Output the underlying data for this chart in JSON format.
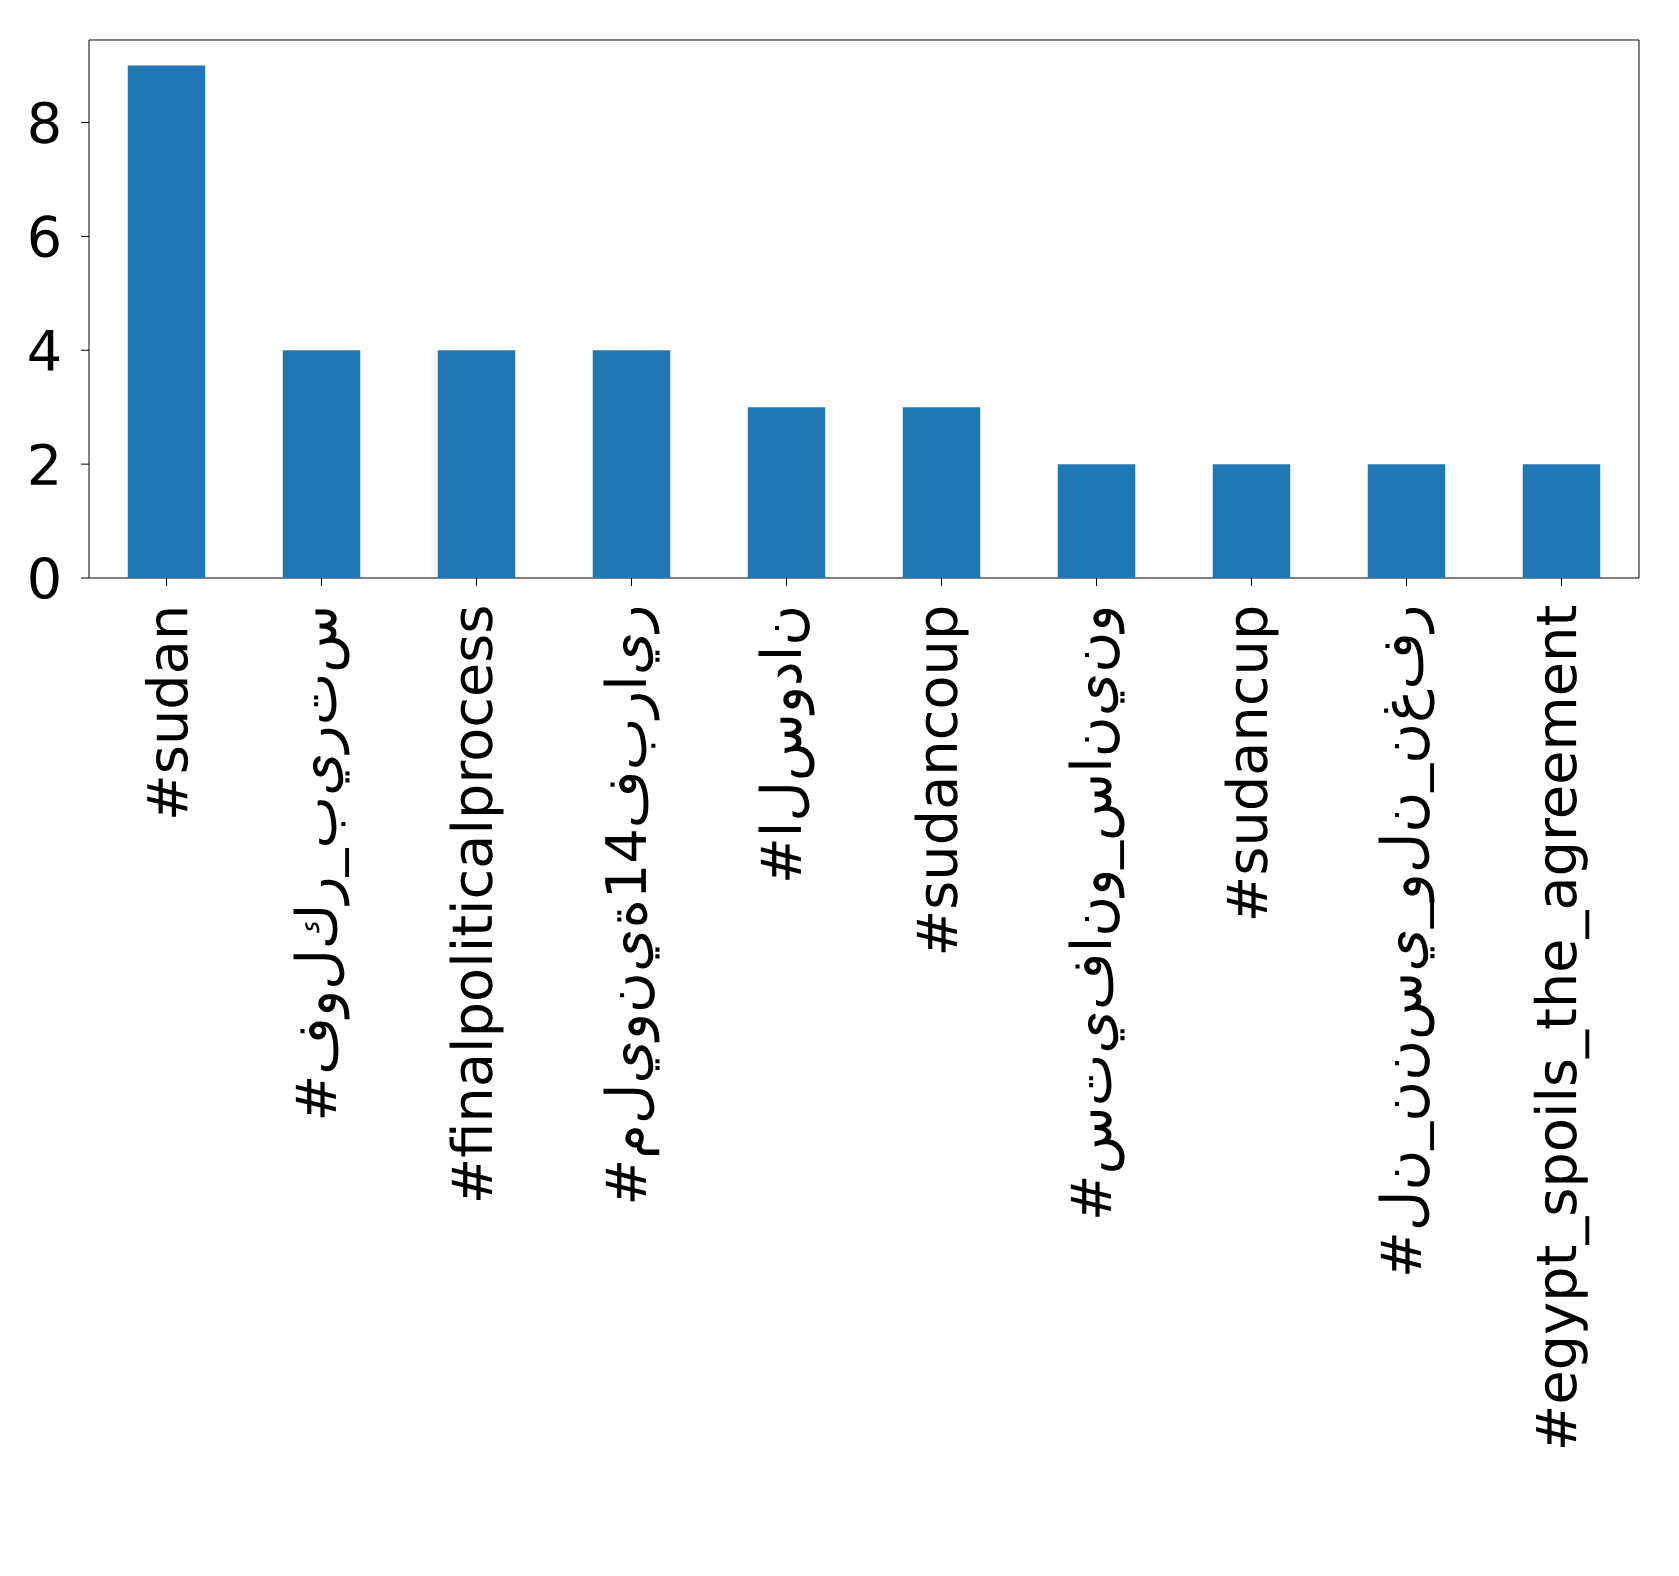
{
  "chart_data": {
    "type": "bar",
    "categories": [
      "#sudan",
      "#فولكر_بيرتس",
      "#finalpoliticalprocess",
      "#مليونية14فبراير",
      "#السودان",
      "#sudancoup",
      "#ستيفانو_سانينو",
      "#sudancup",
      "#لن_ننسي_ولن_نغفر",
      "#egypt_spoils_the_agreement"
    ],
    "values": [
      9,
      4,
      4,
      4,
      3,
      3,
      2,
      2,
      2,
      2
    ],
    "color": "#1f77b4",
    "ylim": [
      0,
      9.45
    ],
    "yticks": [
      0,
      2,
      4,
      6,
      8
    ],
    "grid": false
  }
}
